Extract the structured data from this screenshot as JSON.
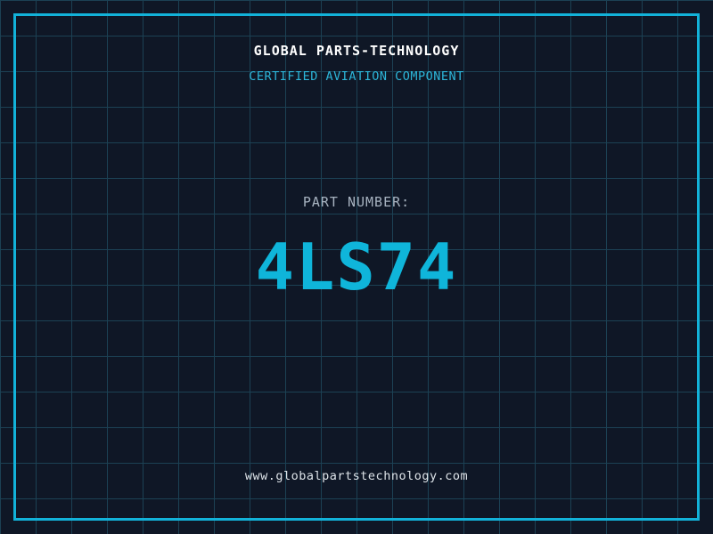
{
  "header": {
    "title": "GLOBAL PARTS-TECHNOLOGY",
    "subtitle": "CERTIFIED AVIATION COMPONENT"
  },
  "part": {
    "label": "PART NUMBER:",
    "number": "4LS74"
  },
  "footer": {
    "website": "www.globalpartstechnology.com"
  },
  "colors": {
    "background": "#0f1726",
    "grid_line": "#1c4154",
    "frame_border": "#12b2d9",
    "title_text": "#ffffff",
    "subtitle_text": "#2db6d9",
    "label_text": "#a7b3c0",
    "part_number_text": "#0fb5da",
    "footer_text": "#dde3e8"
  }
}
